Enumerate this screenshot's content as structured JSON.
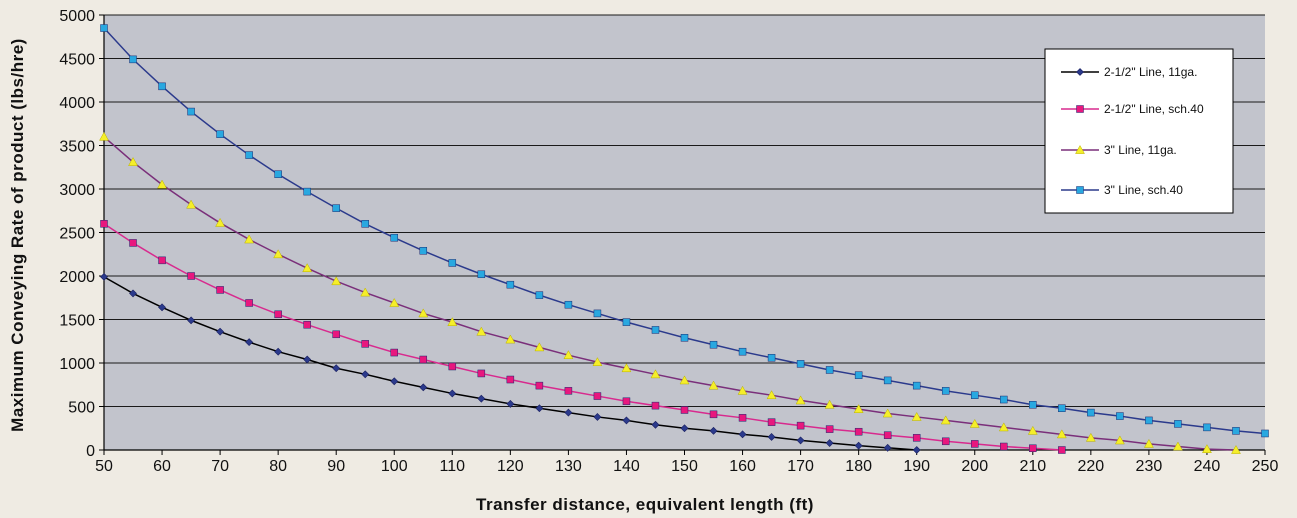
{
  "chart_data": {
    "type": "line",
    "title": "",
    "xlabel": "Transfer distance, equivalent length (ft)",
    "ylabel": "Maximum Conveying Rate of product (lbs/hre)",
    "xlim": [
      50,
      250
    ],
    "ylim": [
      0,
      5000
    ],
    "x_ticks": [
      50,
      60,
      70,
      80,
      90,
      100,
      110,
      120,
      130,
      140,
      150,
      160,
      170,
      180,
      190,
      200,
      210,
      220,
      230,
      240,
      250
    ],
    "y_ticks": [
      0,
      500,
      1000,
      1500,
      2000,
      2500,
      3000,
      3500,
      4000,
      4500,
      5000
    ],
    "grid": "horizontal",
    "legend_position": "top-right",
    "series": [
      {
        "name": "2-1/2\" Line, 11ga.",
        "line_color": "#000000",
        "marker": "diamond",
        "marker_color": "#2b3a8c",
        "x": [
          50,
          55,
          60,
          65,
          70,
          75,
          80,
          85,
          90,
          95,
          100,
          105,
          110,
          115,
          120,
          125,
          130,
          135,
          140,
          145,
          150,
          155,
          160,
          165,
          170,
          175,
          180,
          185,
          190
        ],
        "values": [
          1990,
          1800,
          1640,
          1490,
          1360,
          1240,
          1130,
          1040,
          940,
          870,
          790,
          720,
          650,
          590,
          530,
          480,
          430,
          380,
          340,
          290,
          250,
          220,
          180,
          150,
          110,
          80,
          50,
          25,
          0
        ]
      },
      {
        "name": "2-1/2\" Line, sch.40",
        "line_color": "#d82a8e",
        "marker": "square",
        "marker_color": "#e8177e",
        "x": [
          50,
          55,
          60,
          65,
          70,
          75,
          80,
          85,
          90,
          95,
          100,
          105,
          110,
          115,
          120,
          125,
          130,
          135,
          140,
          145,
          150,
          155,
          160,
          165,
          170,
          175,
          180,
          185,
          190,
          195,
          200,
          205,
          210,
          215
        ],
        "values": [
          2600,
          2380,
          2180,
          2000,
          1840,
          1690,
          1560,
          1440,
          1330,
          1220,
          1120,
          1040,
          960,
          880,
          810,
          740,
          680,
          620,
          560,
          510,
          460,
          410,
          370,
          320,
          280,
          240,
          210,
          170,
          140,
          100,
          70,
          40,
          20,
          0
        ]
      },
      {
        "name": "3\" Line, 11ga.",
        "line_color": "#7a2f7a",
        "marker": "triangle",
        "marker_color": "#f5ee2a",
        "x": [
          50,
          55,
          60,
          65,
          70,
          75,
          80,
          85,
          90,
          95,
          100,
          105,
          110,
          115,
          120,
          125,
          130,
          135,
          140,
          145,
          150,
          155,
          160,
          165,
          170,
          175,
          180,
          185,
          190,
          195,
          200,
          205,
          210,
          215,
          220,
          225,
          230,
          235,
          240,
          245
        ],
        "values": [
          3600,
          3310,
          3050,
          2820,
          2610,
          2420,
          2250,
          2090,
          1940,
          1810,
          1690,
          1570,
          1470,
          1360,
          1270,
          1180,
          1090,
          1010,
          940,
          870,
          800,
          740,
          680,
          630,
          570,
          520,
          470,
          420,
          380,
          340,
          300,
          260,
          220,
          180,
          140,
          110,
          70,
          40,
          10,
          0
        ]
      },
      {
        "name": "3\" Line,  sch.40",
        "line_color": "#2b3a8c",
        "marker": "square",
        "marker_color": "#29a8e0",
        "x": [
          50,
          55,
          60,
          65,
          70,
          75,
          80,
          85,
          90,
          95,
          100,
          105,
          110,
          115,
          120,
          125,
          130,
          135,
          140,
          145,
          150,
          155,
          160,
          165,
          170,
          175,
          180,
          185,
          190,
          195,
          200,
          205,
          210,
          215,
          220,
          225,
          230,
          235,
          240,
          245,
          250
        ],
        "values": [
          4850,
          4490,
          4180,
          3890,
          3630,
          3390,
          3170,
          2970,
          2780,
          2600,
          2440,
          2290,
          2150,
          2020,
          1900,
          1780,
          1670,
          1570,
          1470,
          1380,
          1290,
          1210,
          1130,
          1060,
          990,
          920,
          860,
          800,
          740,
          680,
          630,
          580,
          520,
          480,
          430,
          390,
          340,
          300,
          260,
          220,
          190
        ]
      }
    ]
  },
  "colors": {
    "page_background": "#efebe3",
    "plot_background": "#c2c4cc",
    "grid_line": "#1a1a1a"
  }
}
